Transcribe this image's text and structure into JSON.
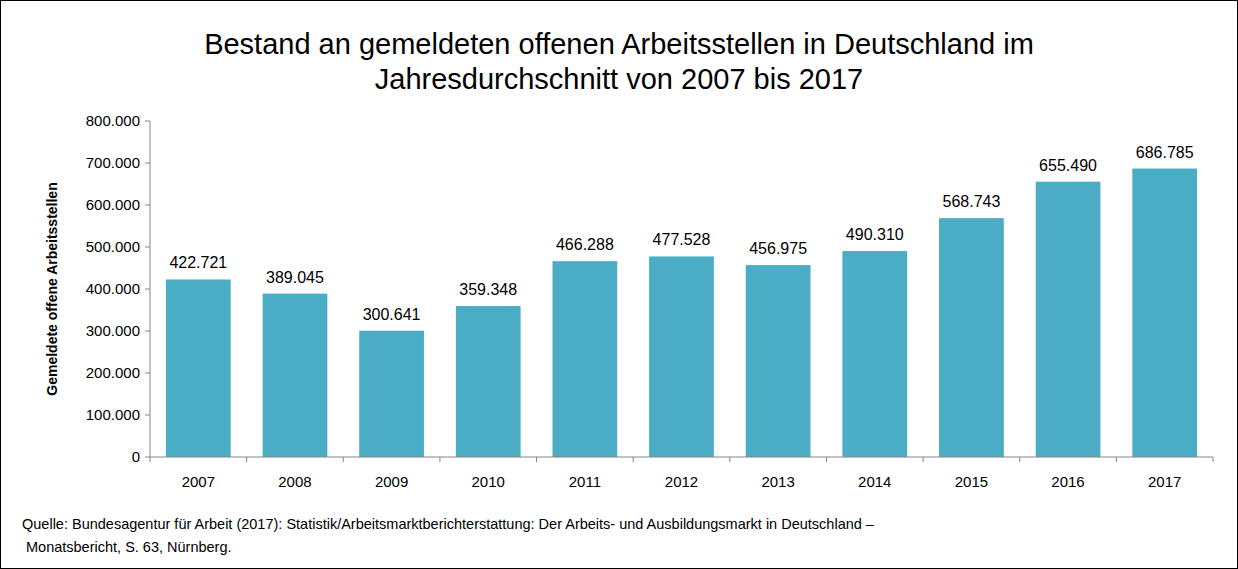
{
  "chart_data": {
    "type": "bar",
    "title": "Bestand an gemeldeten offenen Arbeitsstellen in Deutschland im Jahresdurchschnitt von 2007 bis 2017",
    "y_label": "Gemeldete offene Arbeitsstellen",
    "categories": [
      "2007",
      "2008",
      "2009",
      "2010",
      "2011",
      "2012",
      "2013",
      "2014",
      "2015",
      "2016",
      "2017"
    ],
    "values": [
      422721,
      389045,
      300641,
      359348,
      466288,
      477528,
      456975,
      490310,
      568743,
      655490,
      686785
    ],
    "value_labels": [
      "422.721",
      "389.045",
      "300.641",
      "359.348",
      "466.288",
      "477.528",
      "456.975",
      "490.310",
      "568.743",
      "655.490",
      "686.785"
    ],
    "color": "#4bacc6",
    "ylim": [
      0,
      800000
    ],
    "yticks": [
      0,
      {
        "value": 100000,
        "label": "100.000"
      },
      {
        "value": 200000,
        "label": "200.000"
      },
      {
        "value": 300000,
        "label": "300.000"
      },
      {
        "value": 400000,
        "label": "400.000"
      },
      {
        "value": 500000,
        "label": "500.000"
      },
      {
        "value": 600000,
        "label": "600.000"
      },
      {
        "value": 700000,
        "label": "700.000"
      },
      {
        "value": 800000,
        "label": "800.000"
      }
    ],
    "grid": false,
    "data_labels": true,
    "annotations": [
      "Quelle: Bundesagentur für Arbeit (2017): Statistik/Arbeitsmarktberichterstattung: Der Arbeits- und Ausbildungsmarkt in Deutschland –",
      "Monatsbericht, S. 63, Nürnberg."
    ]
  }
}
